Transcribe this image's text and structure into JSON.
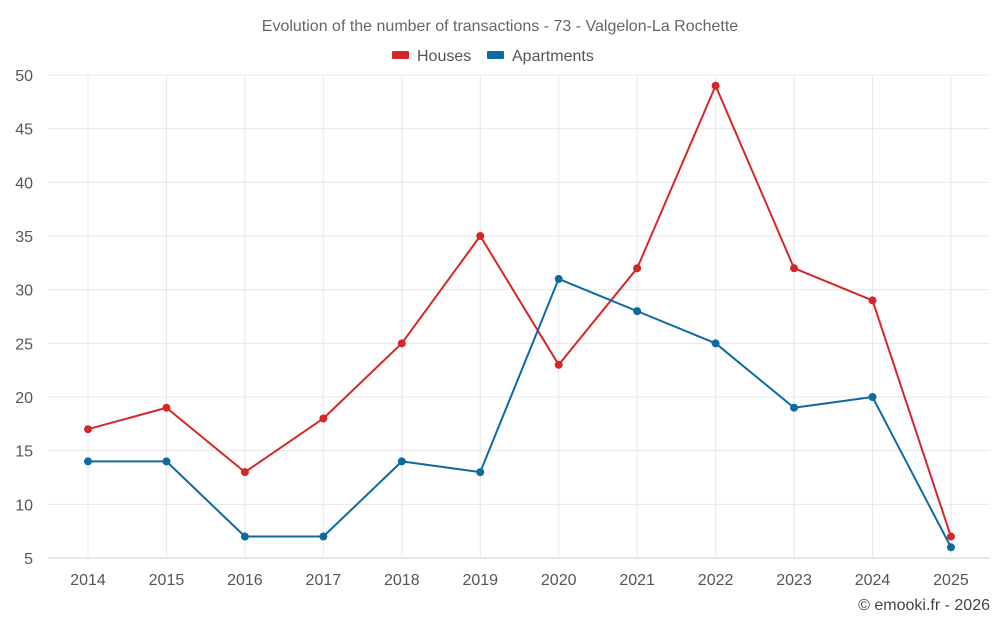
{
  "chart_data": {
    "type": "line",
    "title": "Evolution of the number of transactions - 73 - Valgelon-La Rochette",
    "categories": [
      "2014",
      "2015",
      "2016",
      "2017",
      "2018",
      "2019",
      "2020",
      "2021",
      "2022",
      "2023",
      "2024",
      "2025"
    ],
    "series": [
      {
        "name": "Houses",
        "color": "#d62728",
        "values": [
          17,
          19,
          13,
          18,
          25,
          35,
          23,
          32,
          49,
          32,
          29,
          7
        ]
      },
      {
        "name": "Apartments",
        "color": "#0e6aa0",
        "values": [
          14,
          14,
          7,
          7,
          14,
          13,
          31,
          28,
          25,
          19,
          20,
          6
        ]
      }
    ],
    "xlabel": "",
    "ylabel": "",
    "ylim": [
      5,
      50
    ],
    "yticks": [
      "5",
      "10",
      "15",
      "20",
      "25",
      "30",
      "35",
      "40",
      "45",
      "50"
    ],
    "grid": true,
    "legend_position": "top-center"
  },
  "credit": "© emooki.fr - 2026"
}
